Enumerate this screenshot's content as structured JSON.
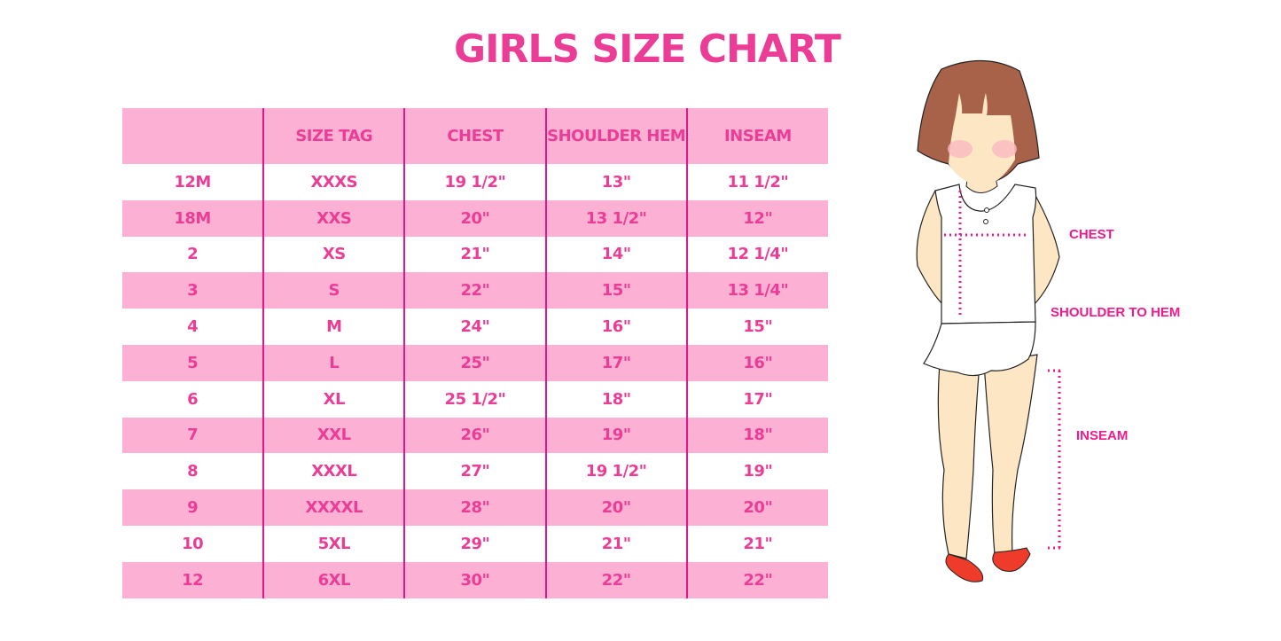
{
  "title": "GIRLS SIZE CHART",
  "colors": {
    "accent": "#ec3d96",
    "row_pink": "#fbb0d4",
    "divider": "#e0188a"
  },
  "table": {
    "headers": [
      "",
      "SIZE TAG",
      "CHEST",
      "SHOULDER HEM",
      "INSEAM"
    ],
    "rows": [
      [
        "12M",
        "XXXS",
        "19 1/2\"",
        "13\"",
        "11 1/2\""
      ],
      [
        "18M",
        "XXS",
        "20\"",
        "13 1/2\"",
        "12\""
      ],
      [
        "2",
        "XS",
        "21\"",
        "14\"",
        "12 1/4\""
      ],
      [
        "3",
        "S",
        "22\"",
        "15\"",
        "13 1/4\""
      ],
      [
        "4",
        "M",
        "24\"",
        "16\"",
        "15\""
      ],
      [
        "5",
        "L",
        "25\"",
        "17\"",
        "16\""
      ],
      [
        "6",
        "XL",
        "25 1/2\"",
        "18\"",
        "17\""
      ],
      [
        "7",
        "XXL",
        "26\"",
        "19\"",
        "18\""
      ],
      [
        "8",
        "XXXL",
        "27\"",
        "19 1/2\"",
        "19\""
      ],
      [
        "9",
        "XXXXL",
        "28\"",
        "20\"",
        "20\""
      ],
      [
        "10",
        "5XL",
        "29\"",
        "21\"",
        "21\""
      ],
      [
        "12",
        "6XL",
        "30\"",
        "22\"",
        "22\""
      ]
    ]
  },
  "figure": {
    "labels": {
      "chest": "CHEST",
      "shoulder_to_hem": "SHOULDER TO HEM",
      "inseam": "INSEAM"
    }
  }
}
